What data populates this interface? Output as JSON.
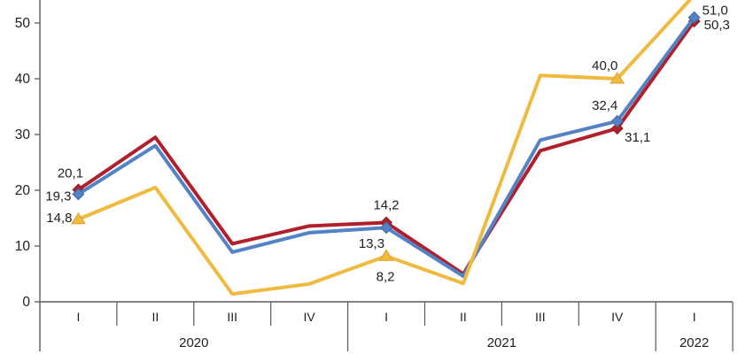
{
  "page": {
    "background": "#ffffff",
    "title": ""
  },
  "chart_data": {
    "type": "line",
    "title": "",
    "xlabel": "",
    "ylabel": "",
    "grid": false,
    "legend": "none",
    "decimal_separator": ",",
    "ylim": [
      0,
      55
    ],
    "y_ticks": [
      0,
      10,
      20,
      30,
      40,
      50
    ],
    "categories": [
      "I",
      "II",
      "III",
      "IV",
      "I",
      "II",
      "III",
      "IV",
      "I"
    ],
    "year_groups": [
      {
        "label": "2020",
        "quarters": 4
      },
      {
        "label": "2021",
        "quarters": 4
      },
      {
        "label": "2022",
        "quarters": 1
      }
    ],
    "axis_color": "#5a5a5a",
    "text_color": "#1f1f1f",
    "note": "Top of chart is cropped: gold series rises above the visible area toward 2022-I and its last marker/label is not visible.",
    "series": [
      {
        "name": "series-dark-red",
        "color": "#b0202c",
        "marker": "diamond",
        "marker_stroke": "#8e1b26",
        "line_width": 4,
        "values": [
          20.1,
          29.5,
          10.4,
          13.6,
          14.2,
          5.0,
          27.1,
          31.1,
          50.3
        ],
        "marker_points": [
          0,
          4,
          7,
          8
        ],
        "data_labels": [
          {
            "point": 0,
            "text": "20,1",
            "dx": -9,
            "dy": -14,
            "anchor": "middle"
          },
          {
            "point": 4,
            "text": "14,2",
            "dx": 0,
            "dy": -15,
            "anchor": "middle"
          },
          {
            "point": 7,
            "text": "31,1",
            "dx": 23,
            "dy": 15,
            "anchor": "middle"
          },
          {
            "point": 8,
            "text": "50,3",
            "dx": 11,
            "dy": 9,
            "anchor": "start"
          }
        ]
      },
      {
        "name": "series-blue",
        "color": "#5383c4",
        "marker": "diamond",
        "marker_stroke": "#3c68a5",
        "line_width": 4,
        "values": [
          19.3,
          28.0,
          8.9,
          12.4,
          13.3,
          4.6,
          29.0,
          32.4,
          51.0
        ],
        "marker_points": [
          0,
          4,
          7,
          8
        ],
        "data_labels": [
          {
            "point": 0,
            "text": "19,3",
            "dx": -8,
            "dy": 7,
            "anchor": "end"
          },
          {
            "point": 4,
            "text": "13,3",
            "dx": -2,
            "dy": 23,
            "anchor": "end"
          },
          {
            "point": 7,
            "text": "32,4",
            "dx": -14,
            "dy": -13,
            "anchor": "middle"
          },
          {
            "point": 8,
            "text": "51,0",
            "dx": 9,
            "dy": -3,
            "anchor": "start"
          }
        ]
      },
      {
        "name": "series-gold",
        "color": "#efba3f",
        "marker": "triangle",
        "marker_stroke": "#d9a32e",
        "line_width": 4,
        "values": [
          14.8,
          20.5,
          1.4,
          3.2,
          8.2,
          3.3,
          40.6,
          40.0,
          55.0
        ],
        "marker_points": [
          0,
          4,
          7,
          8
        ],
        "data_labels": [
          {
            "point": 0,
            "text": "14,8",
            "dx": -7,
            "dy": 3,
            "anchor": "end"
          },
          {
            "point": 4,
            "text": "8,2",
            "dx": -1,
            "dy": 28,
            "anchor": "middle"
          },
          {
            "point": 7,
            "text": "40,0",
            "dx": -14,
            "dy": -10,
            "anchor": "middle"
          }
        ]
      }
    ]
  }
}
